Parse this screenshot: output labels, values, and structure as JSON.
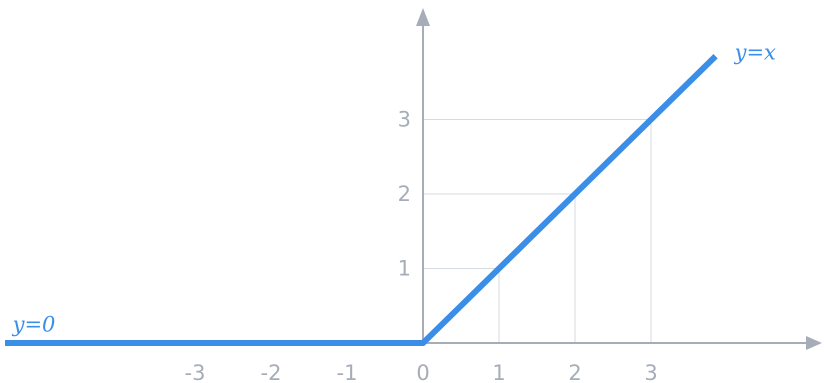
{
  "chart_data": {
    "type": "line",
    "title": "",
    "xlabel": "",
    "ylabel": "",
    "xlim": [
      -5.5,
      5.4
    ],
    "ylim": [
      0,
      4.5
    ],
    "grid": "partial",
    "x_ticks": [
      {
        "value": -3,
        "label": "-3"
      },
      {
        "value": -2,
        "label": "-2"
      },
      {
        "value": -1,
        "label": "-1"
      },
      {
        "value": 0,
        "label": "0"
      },
      {
        "value": 1,
        "label": "1"
      },
      {
        "value": 2,
        "label": "2"
      },
      {
        "value": 3,
        "label": "3"
      }
    ],
    "y_ticks": [
      {
        "value": 1,
        "label": "1"
      },
      {
        "value": 2,
        "label": "2"
      },
      {
        "value": 3,
        "label": "3"
      }
    ],
    "series": [
      {
        "color": "#3a8ee8",
        "points": [
          {
            "x": -5.5,
            "y": 0
          },
          {
            "x": 0,
            "y": 0
          },
          {
            "x": 3.85,
            "y": 3.85
          }
        ]
      }
    ],
    "annotations": [
      {
        "text": "y=x",
        "x": 4.1,
        "y": 3.9
      },
      {
        "text": "y=0",
        "x": -5.4,
        "y": 0.25
      }
    ],
    "colors": {
      "axis": "#a6adb8",
      "grid": "#d5d9e0",
      "line": "#3a8ee8"
    }
  }
}
